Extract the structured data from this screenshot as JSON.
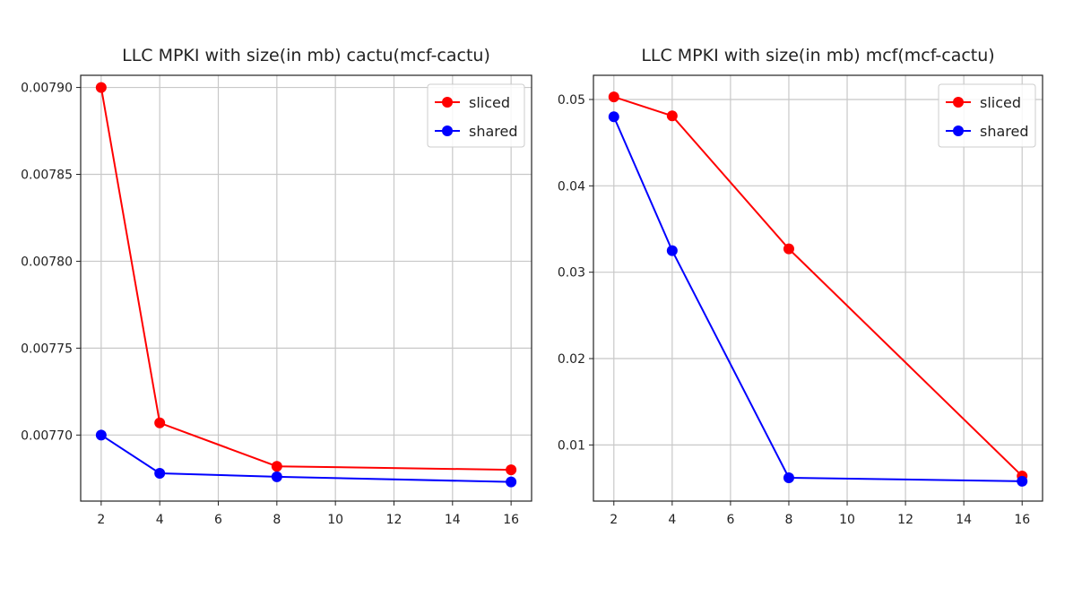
{
  "chart_data": [
    {
      "type": "line",
      "title": "LLC MPKI with size(in mb) cactu(mcf-cactu)",
      "xlabel": "",
      "ylabel": "",
      "x": [
        2,
        4,
        8,
        16
      ],
      "xlim": [
        1.3,
        16.7
      ],
      "ylim": [
        0.007662,
        0.007907
      ],
      "xticks": [
        2,
        4,
        6,
        8,
        10,
        12,
        14,
        16
      ],
      "xtick_labels": [
        "2",
        "4",
        "6",
        "8",
        "10",
        "12",
        "14",
        "16"
      ],
      "yticks": [
        0.0077,
        0.00775,
        0.0078,
        0.00785,
        0.0079
      ],
      "ytick_labels": [
        "0.00770",
        "0.00775",
        "0.00780",
        "0.00785",
        "0.00790"
      ],
      "grid": true,
      "legend": "top-right",
      "series": [
        {
          "name": "sliced",
          "color": "#ff0000",
          "values": [
            0.0079,
            0.007707,
            0.007682,
            0.00768
          ]
        },
        {
          "name": "shared",
          "color": "#0000ff",
          "values": [
            0.0077,
            0.007678,
            0.007676,
            0.007673
          ]
        }
      ]
    },
    {
      "type": "line",
      "title": "LLC MPKI with size(in mb) mcf(mcf-cactu)",
      "xlabel": "",
      "ylabel": "",
      "x": [
        2,
        4,
        8,
        16
      ],
      "xlim": [
        1.3,
        16.7
      ],
      "ylim": [
        0.0035,
        0.0528
      ],
      "xticks": [
        2,
        4,
        6,
        8,
        10,
        12,
        14,
        16
      ],
      "xtick_labels": [
        "2",
        "4",
        "6",
        "8",
        "10",
        "12",
        "14",
        "16"
      ],
      "yticks": [
        0.01,
        0.02,
        0.03,
        0.04,
        0.05
      ],
      "ytick_labels": [
        "0.01",
        "0.02",
        "0.03",
        "0.04",
        "0.05"
      ],
      "grid": true,
      "legend": "top-right",
      "series": [
        {
          "name": "sliced",
          "color": "#ff0000",
          "values": [
            0.0503,
            0.0481,
            0.0327,
            0.0064
          ]
        },
        {
          "name": "shared",
          "color": "#0000ff",
          "values": [
            0.048,
            0.0325,
            0.0062,
            0.0058
          ]
        }
      ]
    }
  ]
}
